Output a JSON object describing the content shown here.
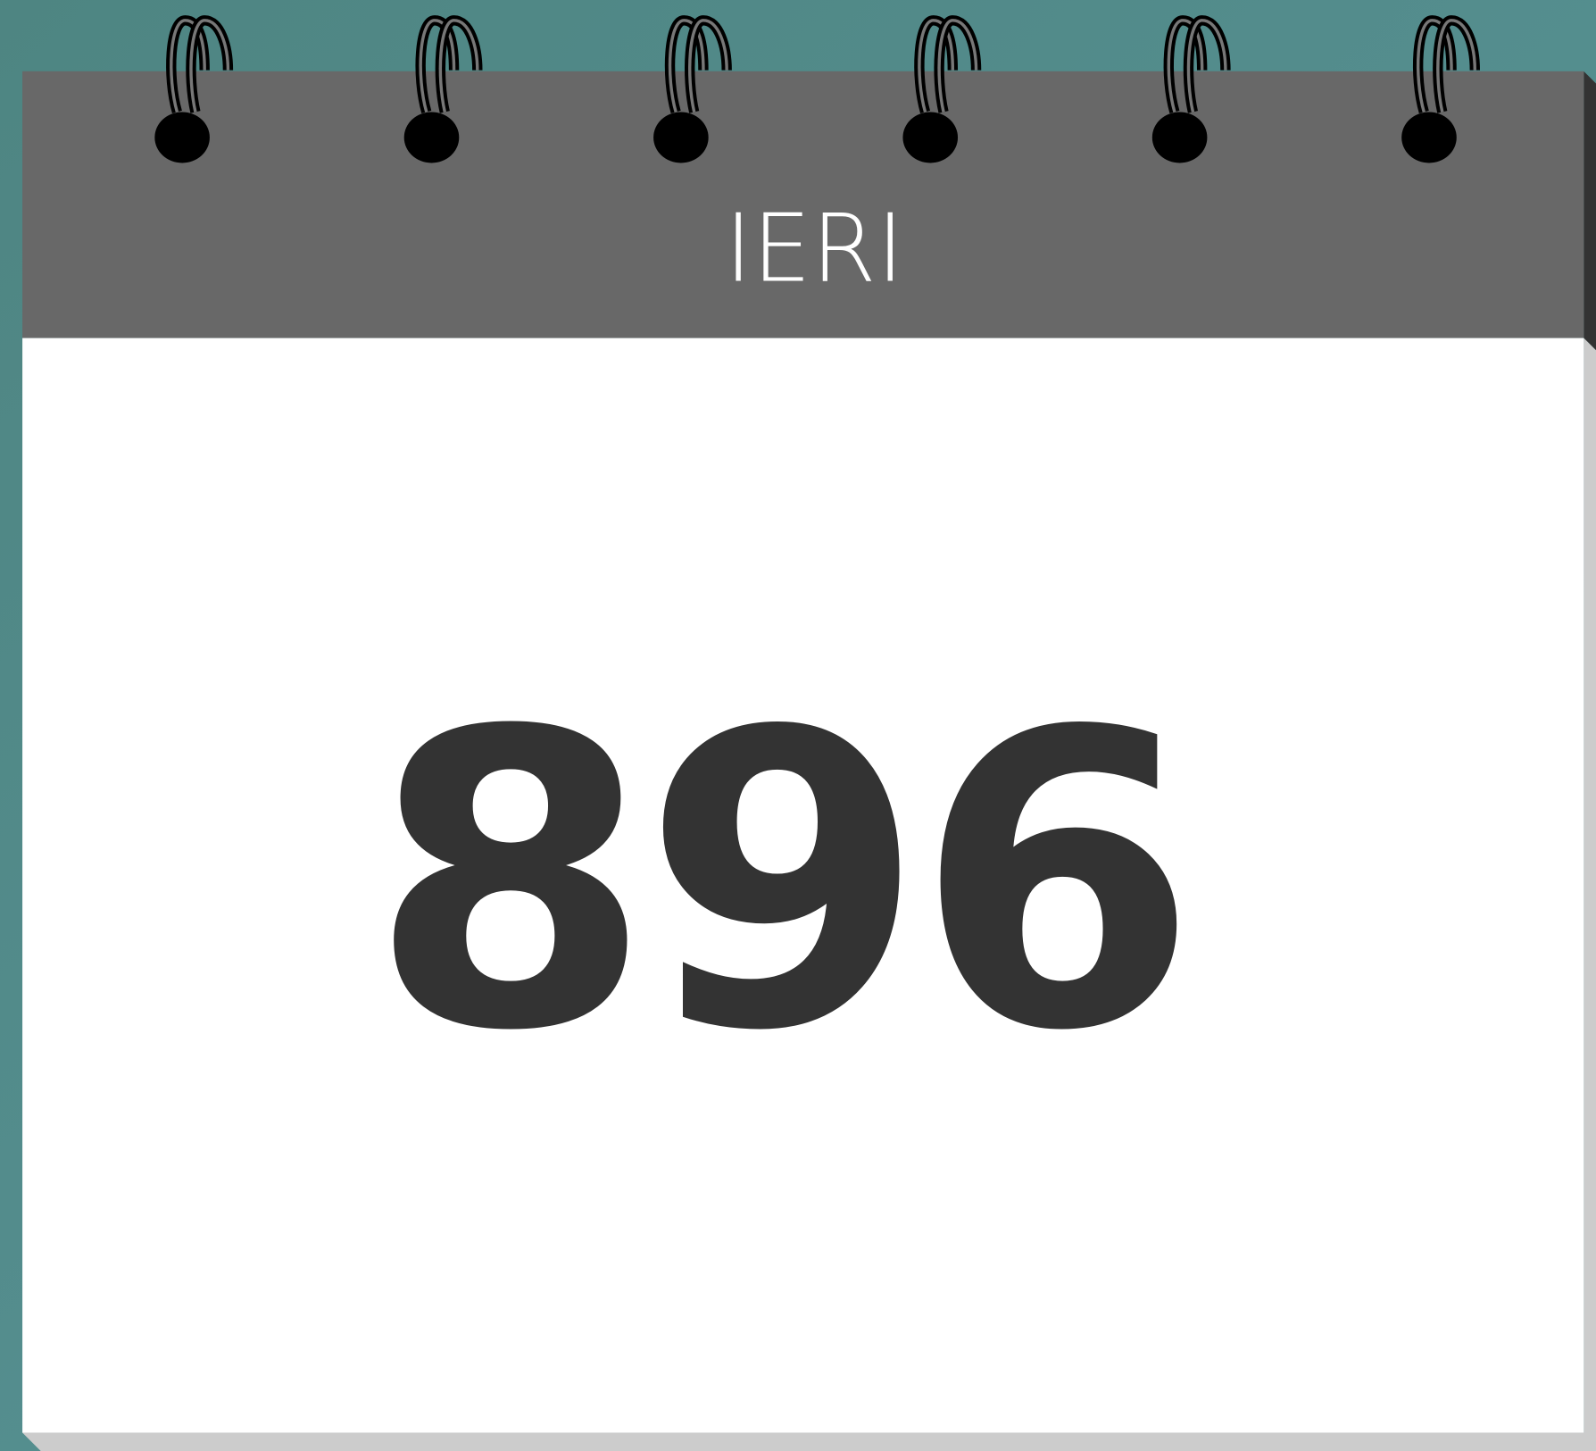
{
  "header": {
    "title": "IERI"
  },
  "value": {
    "number": "896"
  }
}
